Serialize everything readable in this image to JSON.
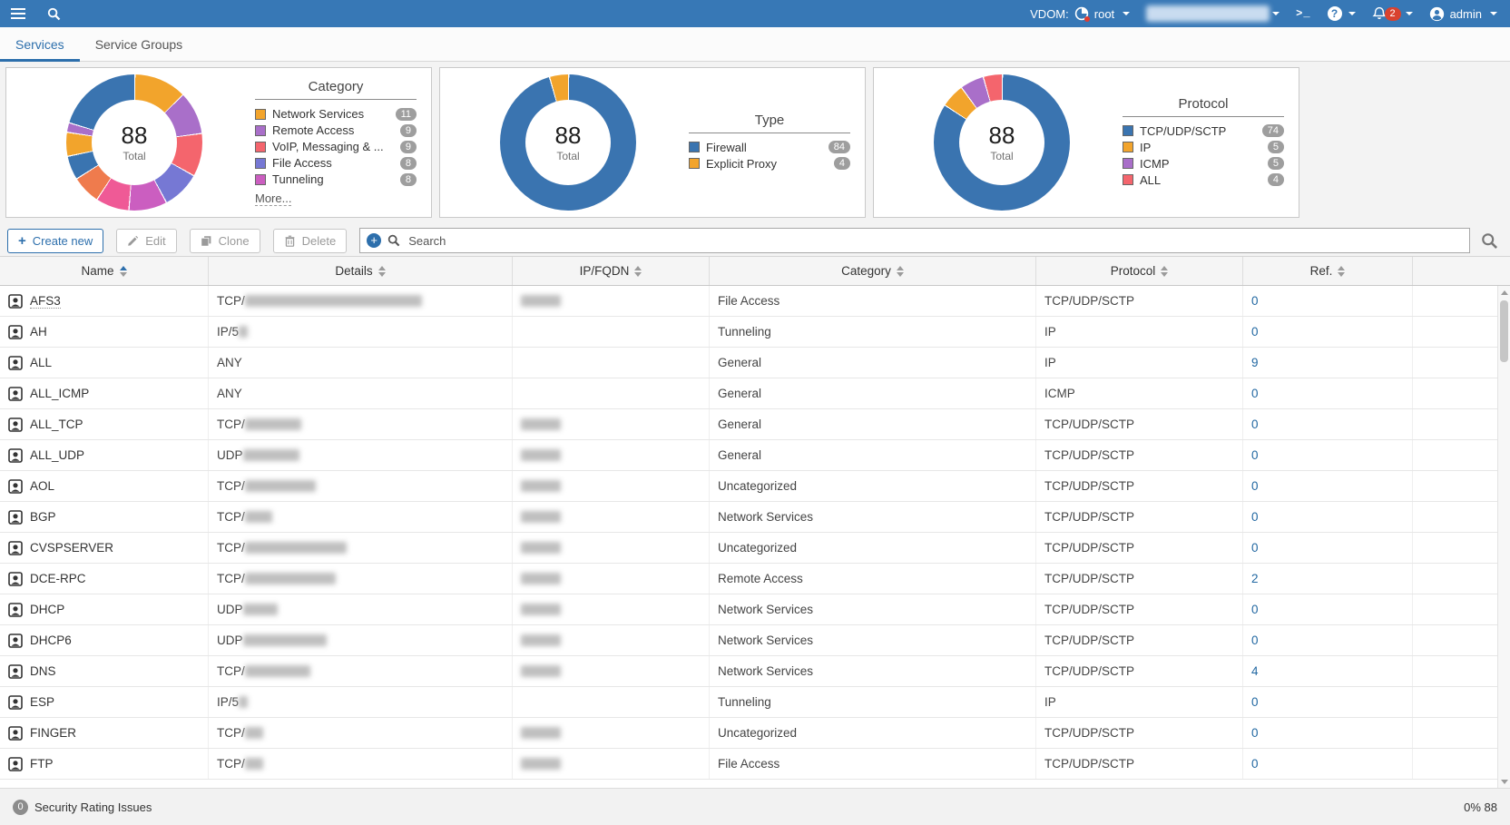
{
  "topbar": {
    "vdom_label": "VDOM:",
    "vdom_value": "root",
    "console_icon_text": ">_",
    "help_text": "?",
    "notification_count": "2",
    "user_label": "admin"
  },
  "tabs": [
    {
      "label": "Services",
      "active": true
    },
    {
      "label": "Service Groups",
      "active": false
    }
  ],
  "toolbar": {
    "create_label": "Create new",
    "edit_label": "Edit",
    "clone_label": "Clone",
    "delete_label": "Delete",
    "search_placeholder": "Search"
  },
  "chart_data": [
    {
      "type": "donut",
      "title": "Category",
      "total": 88,
      "center_label": "Total",
      "legend": [
        {
          "label": "Network Services",
          "value": 11,
          "color": "#f2a42c"
        },
        {
          "label": "Remote Access",
          "value": 9,
          "color": "#a96fc9"
        },
        {
          "label": "VoIP, Messaging & ...",
          "value": 9,
          "color": "#f4656d"
        },
        {
          "label": "File Access",
          "value": 8,
          "color": "#7678d4"
        },
        {
          "label": "Tunneling",
          "value": 8,
          "color": "#cb5ec0"
        }
      ],
      "more_label": "More...",
      "segments": [
        {
          "color": "#f2a42c",
          "value": 11
        },
        {
          "color": "#a96fc9",
          "value": 9
        },
        {
          "color": "#f4656d",
          "value": 9
        },
        {
          "color": "#7678d4",
          "value": 8
        },
        {
          "color": "#cb5ec0",
          "value": 8
        },
        {
          "color": "#ef5a96",
          "value": 7
        },
        {
          "color": "#ef7b4d",
          "value": 6
        },
        {
          "color": "#3a74b0",
          "value": 5
        },
        {
          "color": "#f2a42c",
          "value": 5
        },
        {
          "color": "#a96fc9",
          "value": 2
        },
        {
          "color": "#3a74b0",
          "value": 18
        }
      ]
    },
    {
      "type": "donut",
      "title": "Type",
      "total": 88,
      "center_label": "Total",
      "legend": [
        {
          "label": "Firewall",
          "value": 84,
          "color": "#3a74b0"
        },
        {
          "label": "Explicit Proxy",
          "value": 4,
          "color": "#f2a42c"
        }
      ],
      "segments": [
        {
          "color": "#3a74b0",
          "value": 84
        },
        {
          "color": "#f2a42c",
          "value": 4
        }
      ]
    },
    {
      "type": "donut",
      "title": "Protocol",
      "total": 88,
      "center_label": "Total",
      "legend": [
        {
          "label": "TCP/UDP/SCTP",
          "value": 74,
          "color": "#3a74b0"
        },
        {
          "label": "IP",
          "value": 5,
          "color": "#f2a42c"
        },
        {
          "label": "ICMP",
          "value": 5,
          "color": "#a96fc9"
        },
        {
          "label": "ALL",
          "value": 4,
          "color": "#f4656d"
        }
      ],
      "segments": [
        {
          "color": "#3a74b0",
          "value": 74
        },
        {
          "color": "#f2a42c",
          "value": 5
        },
        {
          "color": "#a96fc9",
          "value": 5
        },
        {
          "color": "#f4656d",
          "value": 4
        }
      ]
    }
  ],
  "table": {
    "columns": [
      {
        "label": "Name",
        "sorted": "asc"
      },
      {
        "label": "Details"
      },
      {
        "label": "IP/FQDN"
      },
      {
        "label": "Category"
      },
      {
        "label": "Protocol"
      },
      {
        "label": "Ref."
      }
    ],
    "rows": [
      {
        "name": "AFS3",
        "details_prefix": "TCP/",
        "details_blur_w": 195,
        "ip_blur": true,
        "category": "File Access",
        "protocol": "TCP/UDP/SCTP",
        "ref": "0"
      },
      {
        "name": "AH",
        "details_prefix": "IP/5",
        "details_blur_w": 10,
        "ip_blur": false,
        "category": "Tunneling",
        "protocol": "IP",
        "ref": "0"
      },
      {
        "name": "ALL",
        "details_prefix": "ANY",
        "details_blur_w": 0,
        "ip_blur": false,
        "category": "General",
        "protocol": "IP",
        "ref": "9"
      },
      {
        "name": "ALL_ICMP",
        "details_prefix": "ANY",
        "details_blur_w": 0,
        "ip_blur": false,
        "category": "General",
        "protocol": "ICMP",
        "ref": "0"
      },
      {
        "name": "ALL_TCP",
        "details_prefix": "TCP/",
        "details_blur_w": 62,
        "ip_blur": true,
        "category": "General",
        "protocol": "TCP/UDP/SCTP",
        "ref": "0"
      },
      {
        "name": "ALL_UDP",
        "details_prefix": "UDP",
        "details_blur_w": 62,
        "ip_blur": true,
        "category": "General",
        "protocol": "TCP/UDP/SCTP",
        "ref": "0"
      },
      {
        "name": "AOL",
        "details_prefix": "TCP/",
        "details_blur_w": 78,
        "ip_blur": true,
        "category": "Uncategorized",
        "protocol": "TCP/UDP/SCTP",
        "ref": "0"
      },
      {
        "name": "BGP",
        "details_prefix": "TCP/",
        "details_blur_w": 30,
        "ip_blur": true,
        "category": "Network Services",
        "protocol": "TCP/UDP/SCTP",
        "ref": "0"
      },
      {
        "name": "CVSPSERVER",
        "details_prefix": "TCP/",
        "details_blur_w": 112,
        "ip_blur": true,
        "category": "Uncategorized",
        "protocol": "TCP/UDP/SCTP",
        "ref": "0"
      },
      {
        "name": "DCE-RPC",
        "details_prefix": "TCP/",
        "details_blur_w": 100,
        "ip_blur": true,
        "category": "Remote Access",
        "protocol": "TCP/UDP/SCTP",
        "ref": "2"
      },
      {
        "name": "DHCP",
        "details_prefix": "UDP",
        "details_blur_w": 38,
        "ip_blur": true,
        "category": "Network Services",
        "protocol": "TCP/UDP/SCTP",
        "ref": "0"
      },
      {
        "name": "DHCP6",
        "details_prefix": "UDP",
        "details_blur_w": 92,
        "ip_blur": true,
        "category": "Network Services",
        "protocol": "TCP/UDP/SCTP",
        "ref": "0"
      },
      {
        "name": "DNS",
        "details_prefix": "TCP/",
        "details_blur_w": 72,
        "ip_blur": true,
        "category": "Network Services",
        "protocol": "TCP/UDP/SCTP",
        "ref": "4"
      },
      {
        "name": "ESP",
        "details_prefix": "IP/5",
        "details_blur_w": 10,
        "ip_blur": false,
        "category": "Tunneling",
        "protocol": "IP",
        "ref": "0"
      },
      {
        "name": "FINGER",
        "details_prefix": "TCP/",
        "details_blur_w": 20,
        "ip_blur": true,
        "category": "Uncategorized",
        "protocol": "TCP/UDP/SCTP",
        "ref": "0"
      },
      {
        "name": "FTP",
        "details_prefix": "TCP/",
        "details_blur_w": 20,
        "ip_blur": true,
        "category": "File Access",
        "protocol": "TCP/UDP/SCTP",
        "ref": "0"
      }
    ]
  },
  "footer": {
    "issues_count": "0",
    "issues_label": "Security Rating Issues",
    "right_text": "0% 88"
  },
  "colors": {
    "topbar_blue": "#3778b6",
    "accent_blue": "#2d6fac",
    "link_blue": "#2268a2",
    "badge_red": "#d9422f",
    "pill_gray": "#9e9e9e"
  }
}
